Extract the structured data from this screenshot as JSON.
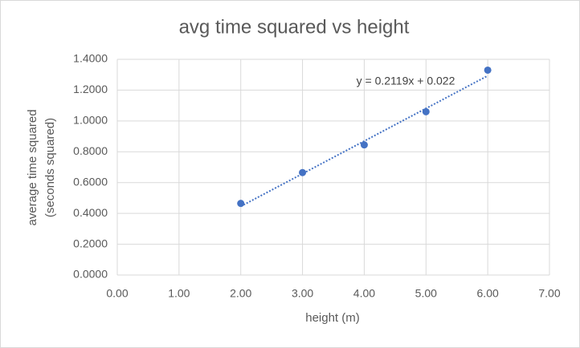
{
  "chart_data": {
    "type": "scatter",
    "title": "avg time squared vs height",
    "xlabel": "height (m)",
    "ylabel": [
      "average time squared",
      "(seconds squared)"
    ],
    "x": [
      2,
      3,
      4,
      5,
      6
    ],
    "series": [
      {
        "color": "#4472c4",
        "values": [
          0.465,
          0.665,
          0.845,
          1.06,
          1.33
        ]
      }
    ],
    "trendline": {
      "label": "y = 0.2119x + 0.022",
      "slope": 0.2119,
      "intercept": 0.022,
      "style": "dotted"
    },
    "xlim": [
      0,
      7
    ],
    "xticks": [
      {
        "value": 0,
        "label": "0.00"
      },
      {
        "value": 1,
        "label": "1.00"
      },
      {
        "value": 2,
        "label": "2.00"
      },
      {
        "value": 3,
        "label": "3.00"
      },
      {
        "value": 4,
        "label": "4.00"
      },
      {
        "value": 5,
        "label": "5.00"
      },
      {
        "value": 6,
        "label": "6.00"
      },
      {
        "value": 7,
        "label": "7.00"
      }
    ],
    "ylim": [
      0,
      1.4
    ],
    "yticks": [
      {
        "value": 0,
        "label": "0.0000"
      },
      {
        "value": 0.2,
        "label": "0.2000"
      },
      {
        "value": 0.4,
        "label": "0.4000"
      },
      {
        "value": 0.6,
        "label": "0.6000"
      },
      {
        "value": 0.8,
        "label": "0.8000"
      },
      {
        "value": 1.0,
        "label": "1.0000"
      },
      {
        "value": 1.2,
        "label": "1.2000"
      },
      {
        "value": 1.4,
        "label": "1.4000"
      }
    ],
    "grid": true
  }
}
